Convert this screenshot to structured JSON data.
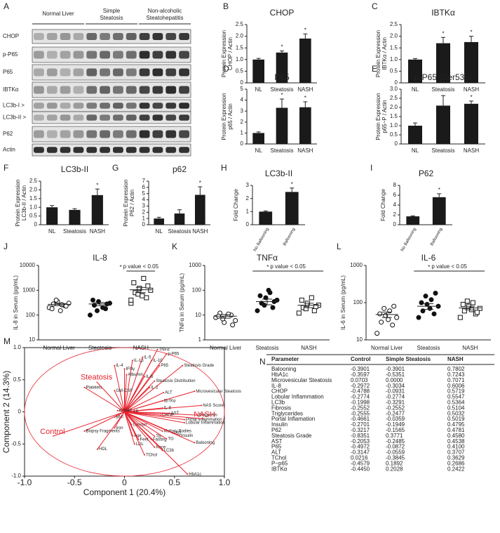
{
  "blot": {
    "panel": "A",
    "groups": [
      [
        "Normal Liver"
      ],
      [
        "Simple",
        "Steatosis"
      ],
      [
        "Non-alcoholic",
        "Steatohepatitis"
      ]
    ],
    "rows": [
      "CHOP",
      "p-P65",
      "P65",
      "IBTKα",
      "LC3b-I >",
      "LC3b-II >",
      "P62",
      "Actin"
    ]
  },
  "chart_data": [
    {
      "type": "bar",
      "panel": "B",
      "title": "CHOP",
      "ylabel": [
        "Protein Expression",
        "CHOP / Actin"
      ],
      "categories": [
        "NL",
        "Steatosis",
        "NASH"
      ],
      "values": [
        1.0,
        1.3,
        1.9
      ],
      "errors": [
        0.05,
        0.07,
        0.2
      ],
      "significance": [
        null,
        "*",
        "*"
      ],
      "color": "#1a1a1a",
      "ylim": [
        0,
        2.5
      ],
      "yticks": [
        0,
        0.5,
        {
          "value": 1,
          "label": "1.0"
        },
        1.5,
        {
          "value": 2,
          "label": "2.0"
        },
        2.5
      ]
    },
    {
      "type": "bar",
      "panel": "C",
      "title": "IBTKα",
      "ylabel": [
        "Protein Expression",
        "IBTKα / Actin"
      ],
      "categories": [
        "NL",
        "Steatosis",
        "NASH"
      ],
      "values": [
        1.0,
        1.7,
        1.75
      ],
      "errors": [
        0.04,
        0.25,
        0.25
      ],
      "significance": [
        null,
        "*",
        "*"
      ],
      "color": "#1a1a1a",
      "ylim": [
        0,
        2.5
      ],
      "yticks": [
        0,
        0.5,
        {
          "value": 1,
          "label": "1.0"
        },
        1.5,
        {
          "value": 2,
          "label": "2.0"
        },
        2.5
      ]
    },
    {
      "type": "bar",
      "panel": "D",
      "title": "P65",
      "ylabel": [
        "Protein Expression",
        "p65 / Actin"
      ],
      "categories": [
        "NL",
        "Steatosis",
        "NASH"
      ],
      "values": [
        1.0,
        3.3,
        3.35
      ],
      "errors": [
        0.1,
        0.8,
        0.5
      ],
      "significance": [
        null,
        "*",
        "*"
      ],
      "color": "#1a1a1a",
      "ylim": [
        0,
        5
      ],
      "yticks": [
        0,
        1,
        2,
        3,
        4,
        5
      ]
    },
    {
      "type": "bar",
      "panel": "E",
      "title": "p-P65 (Ser536)",
      "ylabel": [
        "Protein Expression",
        "p65~P / Actin"
      ],
      "categories": [
        "NL",
        "Steatosis",
        "NASH"
      ],
      "values": [
        1.0,
        2.1,
        2.2
      ],
      "errors": [
        0.15,
        0.55,
        0.15
      ],
      "significance": [
        null,
        null,
        "*"
      ],
      "color": "#1a1a1a",
      "ylim": [
        0,
        3
      ],
      "yticks": [
        0,
        0.5,
        {
          "value": 1,
          "label": "1.0"
        },
        1.5,
        {
          "value": 2,
          "label": "2.0"
        },
        2.5,
        {
          "value": 3,
          "label": "3.0"
        }
      ]
    },
    {
      "type": "bar",
      "panel": "F",
      "title": "LC3b-II",
      "ylabel": [
        "Protein Expression",
        "LC3b-II / Actin"
      ],
      "categories": [
        "NL",
        "Steatosis",
        "NASH"
      ],
      "values": [
        1.0,
        0.85,
        1.7
      ],
      "errors": [
        0.1,
        0.07,
        0.35
      ],
      "significance": [
        null,
        null,
        "*"
      ],
      "color": "#1a1a1a",
      "ylim": [
        0,
        2.5
      ],
      "yticks": [
        0,
        0.5,
        {
          "value": 1,
          "label": "1.0"
        },
        1.5,
        {
          "value": 2,
          "label": "2.0"
        },
        2.5
      ]
    },
    {
      "type": "bar",
      "panel": "G",
      "title": "p62",
      "ylabel": [
        "Protein Expression",
        "P62 / Actin"
      ],
      "categories": [
        "NL",
        "Steatosis",
        "NASH"
      ],
      "values": [
        1.0,
        1.8,
        4.8
      ],
      "errors": [
        0.2,
        0.6,
        1.3
      ],
      "significance": [
        null,
        null,
        "*"
      ],
      "color": "#1a1a1a",
      "ylim": [
        0,
        7
      ],
      "yticks": [
        0,
        1,
        2,
        3,
        4,
        5,
        6,
        7
      ]
    },
    {
      "type": "bar",
      "panel": "H",
      "title": "LC3b-II",
      "ylabel": [
        "Fold Change"
      ],
      "categories": [
        "No Ballooning",
        "Ballooning"
      ],
      "rotated_labels": true,
      "values": [
        1.0,
        2.5
      ],
      "errors": [
        0.05,
        0.3
      ],
      "significance": [
        null,
        "*"
      ],
      "color": "#1a1a1a",
      "ylim": [
        0,
        3
      ],
      "yticks": [
        0,
        1,
        2,
        3
      ]
    },
    {
      "type": "bar",
      "panel": "I",
      "title": "P62",
      "ylabel": [
        "Fold Change"
      ],
      "categories": [
        "No Ballooning",
        "Ballooning"
      ],
      "rotated_labels": true,
      "values": [
        1.7,
        5.6
      ],
      "errors": [
        0.1,
        0.7
      ],
      "significance": [
        null,
        "*"
      ],
      "color": "#1a1a1a",
      "ylim": [
        0,
        8
      ],
      "yticks": [
        0,
        2,
        4,
        6,
        8
      ]
    },
    {
      "type": "dot",
      "panel": "J",
      "title": "IL-8",
      "ylabel": "IL-8 in Serum (pg/mL)",
      "log": true,
      "ylim": [
        10,
        10000
      ],
      "yticks": [
        10,
        100,
        1000,
        10000
      ],
      "categories": [
        "Normal Liver",
        "Steatosis",
        "NASH"
      ],
      "markers": [
        "open-circle",
        "filled-circle",
        "open-square"
      ],
      "values": [
        [
          200,
          240,
          280,
          300,
          350,
          180,
          260,
          400,
          230,
          150
        ],
        [
          100,
          180,
          250,
          300,
          350,
          400,
          200,
          150,
          280
        ],
        [
          300,
          500,
          800,
          1000,
          1200,
          2000,
          3000,
          700,
          1500,
          600,
          400
        ]
      ],
      "means": [
        270,
        280,
        1050
      ],
      "sems": [
        30,
        40,
        250
      ],
      "annotation": {
        "mark": "*",
        "text": "p value < 0.05",
        "from": "NASH",
        "to": "NASH"
      }
    },
    {
      "type": "dot",
      "panel": "K",
      "title": "TNFα",
      "ylabel": "TNFα in Serum (pg/mL)",
      "log": true,
      "ylim": [
        1,
        1000
      ],
      "yticks": [
        1,
        10,
        100,
        1000
      ],
      "categories": [
        "Normal Liver",
        "Steatosis",
        "NASH"
      ],
      "markers": [
        "open-circle",
        "filled-circle",
        "open-square"
      ],
      "values": [
        [
          8,
          10,
          12,
          6,
          5,
          9,
          11,
          7,
          4
        ],
        [
          15,
          20,
          30,
          40,
          50,
          60,
          80,
          25,
          35,
          100
        ],
        [
          12,
          15,
          20,
          25,
          30,
          40,
          50,
          18,
          22
        ]
      ],
      "means": [
        9,
        35,
        25
      ],
      "sems": [
        1.5,
        9,
        5
      ],
      "annotation": {
        "mark": "*",
        "text": "p value < 0.05",
        "from": "Steatosis",
        "to": "NASH"
      }
    },
    {
      "type": "dot",
      "panel": "L",
      "title": "IL-6",
      "ylabel": "IL-6 in Serum (pg/mL)",
      "log": true,
      "ylim": [
        10,
        1000
      ],
      "yticks": [
        10,
        100,
        1000
      ],
      "categories": [
        "Normal Liver",
        "Steatosis",
        "NASH"
      ],
      "markers": [
        "open-circle",
        "filled-circle",
        "open-square"
      ],
      "values": [
        [
          15,
          25,
          30,
          40,
          45,
          50,
          60,
          70,
          80,
          35
        ],
        [
          40,
          50,
          60,
          80,
          90,
          100,
          120,
          150,
          180,
          70
        ],
        [
          40,
          50,
          60,
          70,
          80,
          90,
          100,
          110,
          55,
          65
        ]
      ],
      "means": [
        48,
        80,
        72
      ],
      "sems": [
        8,
        14,
        8
      ],
      "annotation": {
        "mark": "*",
        "text": "p value < 0.05",
        "from": "Steatosis",
        "to": "NASH"
      }
    },
    {
      "type": "biplot",
      "panel": "M",
      "xlabel": "Component 1 (20.4%)",
      "ylabel": "Component 2 (14.3%)",
      "color": "#e8232e",
      "xlim": [
        -1,
        1
      ],
      "ylim": [
        -1,
        1
      ],
      "xticks": [
        {
          "value": -1,
          "label": "-1.0"
        },
        -0.5,
        0,
        0.5,
        {
          "value": 1,
          "label": "1.0"
        }
      ],
      "yticks": [
        {
          "value": -1,
          "label": "-1.0"
        },
        -0.5,
        0,
        0.5,
        {
          "value": 1,
          "label": "1.0"
        }
      ],
      "groups": [
        {
          "name": "Steatosis",
          "x": -0.28,
          "y": 0.47
        },
        {
          "name": "Control",
          "x": -0.72,
          "y": -0.38
        },
        {
          "name": "NASH",
          "x": 0.8,
          "y": -0.11
        }
      ],
      "loadings": [
        {
          "name": "TNFα",
          "x": 0.33,
          "y": 0.97
        },
        {
          "name": "p-P65",
          "x": 0.42,
          "y": 0.9
        },
        {
          "name": "IL-1β",
          "x": 0.08,
          "y": 0.8
        },
        {
          "name": "IL-5",
          "x": 0.18,
          "y": 0.85
        },
        {
          "name": "IL-10",
          "x": 0.27,
          "y": 0.8
        },
        {
          "name": "P65",
          "x": 0.35,
          "y": 0.72
        },
        {
          "name": "IL-4",
          "x": -0.1,
          "y": 0.72
        },
        {
          "name": "IFNγ",
          "x": 0.0,
          "y": 0.67
        },
        {
          "name": "Albumin",
          "x": 0.02,
          "y": 0.58
        },
        {
          "name": "IL-6",
          "x": 0.2,
          "y": 0.55
        },
        {
          "name": "Steatosis Grade",
          "x": 0.58,
          "y": 0.72
        },
        {
          "name": "Steatosis Distribution",
          "x": 0.3,
          "y": 0.48
        },
        {
          "name": "IL-2",
          "x": 0.25,
          "y": 0.38
        },
        {
          "name": "ALT",
          "x": 0.39,
          "y": 0.3
        },
        {
          "name": "IBTKα",
          "x": 0.38,
          "y": 0.17
        },
        {
          "name": "Microvesicular Steatosis",
          "x": 0.7,
          "y": 0.32
        },
        {
          "name": "NAS Score",
          "x": 0.77,
          "y": 0.1
        },
        {
          "name": "IL-8",
          "x": 0.38,
          "y": 0.06
        },
        {
          "name": "Diagnosis",
          "x": 0.73,
          "y": -0.05
        },
        {
          "name": "Platelets",
          "x": -0.4,
          "y": 0.38
        },
        {
          "name": "GM-CSF",
          "x": -0.1,
          "y": 0.33
        },
        {
          "name": "Weight",
          "x": -0.07,
          "y": 0.02
        },
        {
          "name": "BMI",
          "x": -0.1,
          "y": -0.08
        },
        {
          "name": "AP",
          "x": 0.07,
          "y": 0.0
        },
        {
          "name": "CHOP",
          "x": 0.36,
          "y": -0.05
        },
        {
          "name": "AST",
          "x": 0.45,
          "y": -0.02
        },
        {
          "name": "Portal Inflammation",
          "x": 0.6,
          "y": -0.12
        },
        {
          "name": "Lobular Inflammation",
          "x": 0.6,
          "y": -0.17
        },
        {
          "name": "Gender",
          "x": 0.07,
          "y": -0.2
        },
        {
          "name": "Iron",
          "x": -0.1,
          "y": -0.25
        },
        {
          "name": "Biopsy Fragments",
          "x": -0.4,
          "y": -0.3
        },
        {
          "name": "Mallory Bodies",
          "x": 0.38,
          "y": -0.3
        },
        {
          "name": "P62",
          "x": 0.48,
          "y": -0.33
        },
        {
          "name": "Insulin",
          "x": 0.55,
          "y": -0.37
        },
        {
          "name": "Age",
          "x": 0.08,
          "y": -0.37
        },
        {
          "name": "TB",
          "x": 0.3,
          "y": -0.38
        },
        {
          "name": "Fasting",
          "x": 0.27,
          "y": -0.43
        },
        {
          "name": "TG",
          "x": 0.42,
          "y": -0.42
        },
        {
          "name": "Feet",
          "x": 0.14,
          "y": -0.43
        },
        {
          "name": "LDL",
          "x": 0.1,
          "y": -0.5
        },
        {
          "name": "Race",
          "x": 0.3,
          "y": -0.55
        },
        {
          "name": "Balooning",
          "x": 0.7,
          "y": -0.48
        },
        {
          "name": "HDL",
          "x": -0.27,
          "y": -0.58
        },
        {
          "name": "TChol",
          "x": 0.2,
          "y": -0.67
        },
        {
          "name": "LC3b",
          "x": 0.38,
          "y": -0.6
        },
        {
          "name": "HbA1c",
          "x": 0.63,
          "y": -0.97
        }
      ]
    }
  ],
  "table": {
    "panel": "N",
    "header": [
      "Parameter",
      "Control",
      "Simple Steatosis",
      "NASH"
    ],
    "rows": [
      [
        "Balooning",
        "-0.3901",
        "-0.3901",
        "0.7802"
      ],
      [
        "HbA1c",
        "-0.3597",
        "-0.5351",
        "0.7243"
      ],
      [
        "Microvesicular Steatosis",
        "0.0703",
        "0.0000",
        "0.7071"
      ],
      [
        "IL-8",
        "-0.2972",
        "-0.3034",
        "0.6006"
      ],
      [
        "CHOP",
        "-0.4788",
        "-0.0931",
        "0.5719"
      ],
      [
        "Lobular Inflammation",
        "-0.2774",
        "-0.2774",
        "0.5547"
      ],
      [
        "LC3b",
        "-0.1998",
        "-0.3291",
        "0.5364"
      ],
      [
        "Fibrosis",
        "-0.2552",
        "-0.2552",
        "0.5104"
      ],
      [
        "Triglycerides",
        "-0.2555",
        "-0.2477",
        "0.5032"
      ],
      [
        "Portal Inflamation",
        "-0.4661",
        "-0.0359",
        "0.5019"
      ],
      [
        "Insulin",
        "-0.2701",
        "-0.1949",
        "0.4795"
      ],
      [
        "P62",
        "-0.3217",
        "-0.1565",
        "0.4781"
      ],
      [
        "Steatosis Grade",
        "-0.8351",
        "0.3771",
        "0.4580"
      ],
      [
        "AST",
        "-0.2053",
        "-0.2485",
        "0.4538"
      ],
      [
        "P65",
        "-0.4972",
        "-0.0872",
        "0.4100"
      ],
      [
        "ALT",
        "-0.3147",
        "-0.0559",
        "0.3707"
      ],
      [
        "TChol",
        "0.0216",
        "-0.3845",
        "0.3629"
      ],
      [
        "P~p65",
        "-0.4579",
        "0.1892",
        "0.2686"
      ],
      [
        "IBTKα",
        "-0.4450",
        "0.2028",
        "0.2422"
      ]
    ]
  }
}
